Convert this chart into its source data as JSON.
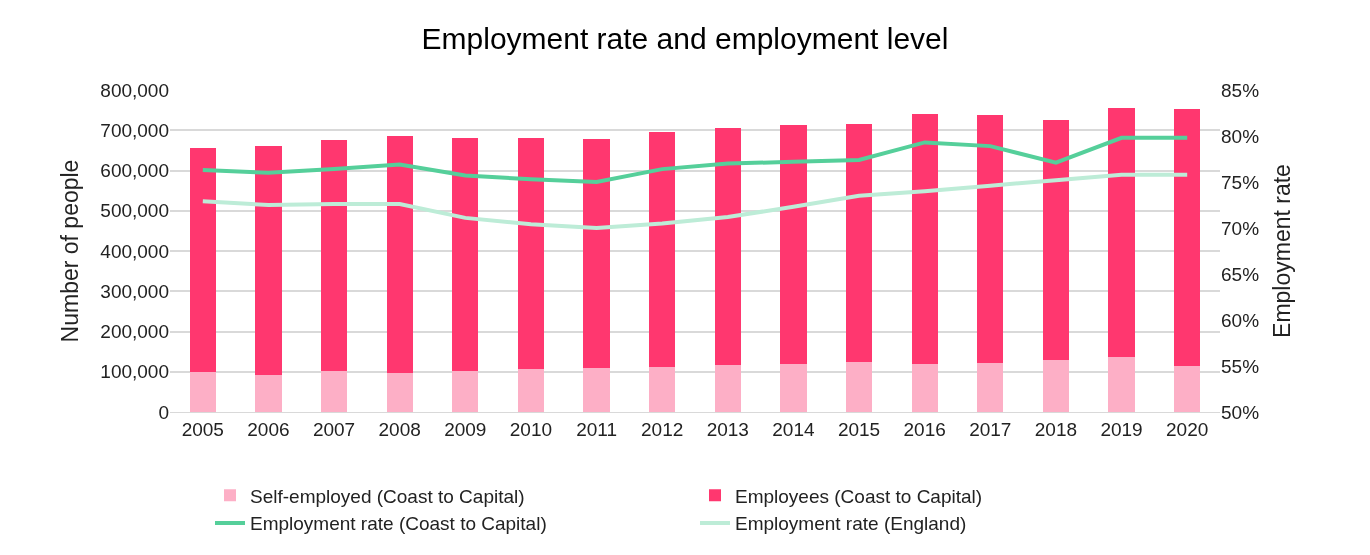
{
  "chart_data": {
    "type": "bar",
    "title": "Employment rate and employment level",
    "ylabel": "Number of people",
    "y2label": "Employment rate",
    "categories": [
      "2005",
      "2006",
      "2007",
      "2008",
      "2009",
      "2010",
      "2011",
      "2012",
      "2013",
      "2014",
      "2015",
      "2016",
      "2017",
      "2018",
      "2019",
      "2020"
    ],
    "stacked": true,
    "series": [
      {
        "name": "Self-employed (Coast to Capital)",
        "color": "#fdafc6",
        "values": [
          100000,
          93000,
          102000,
          98000,
          101000,
          108000,
          109000,
          112000,
          116000,
          120000,
          125000,
          120000,
          122000,
          128000,
          137000,
          114000
        ]
      },
      {
        "name": "Employees (Coast to Capital)",
        "color": "#ff376f",
        "values": [
          555000,
          569000,
          573000,
          588000,
          579000,
          572000,
          570000,
          584000,
          590000,
          592000,
          590000,
          620000,
          617000,
          597000,
          618000,
          640000
        ]
      },
      {
        "name": "Employment rate (Coast to Capital)",
        "type": "line",
        "axis": "y2",
        "color": "#55cf9a",
        "values": [
          76.3,
          76.0,
          76.4,
          76.9,
          75.7,
          75.3,
          75.0,
          76.4,
          77.0,
          77.2,
          77.4,
          79.3,
          78.9,
          77.1,
          79.8,
          79.8
        ]
      },
      {
        "name": "Employment rate (England)",
        "type": "line",
        "axis": "y2",
        "color": "#bdecd7",
        "values": [
          72.9,
          72.5,
          72.6,
          72.6,
          71.1,
          70.4,
          70.0,
          70.5,
          71.2,
          72.3,
          73.5,
          74.0,
          74.6,
          75.2,
          75.8,
          75.8
        ]
      }
    ],
    "ylim": [
      0,
      800000
    ],
    "yticks": [
      {
        "value": 0,
        "label": "0"
      },
      {
        "value": 100000,
        "label": "100,000"
      },
      {
        "value": 200000,
        "label": "200,000"
      },
      {
        "value": 300000,
        "label": "300,000"
      },
      {
        "value": 400000,
        "label": "400,000"
      },
      {
        "value": 500000,
        "label": "500,000"
      },
      {
        "value": 600000,
        "label": "600,000"
      },
      {
        "value": 700000,
        "label": "700,000"
      },
      {
        "value": 800000,
        "label": "800,000"
      }
    ],
    "y2lim": [
      50,
      85
    ],
    "y2ticks": [
      {
        "value": 50,
        "label": "50%"
      },
      {
        "value": 55,
        "label": "55%"
      },
      {
        "value": 60,
        "label": "60%"
      },
      {
        "value": 65,
        "label": "65%"
      },
      {
        "value": 70,
        "label": "70%"
      },
      {
        "value": 75,
        "label": "75%"
      },
      {
        "value": 80,
        "label": "80%"
      },
      {
        "value": 85,
        "label": "85%"
      }
    ],
    "grid": "y",
    "legend": "bottom",
    "marker": "none",
    "line_style": "solid"
  }
}
